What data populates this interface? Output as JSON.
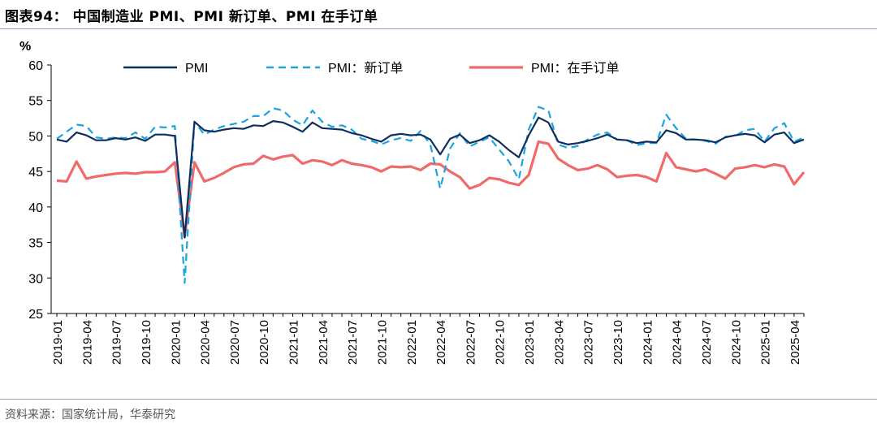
{
  "header": {
    "title": "图表94：  中国制造业 PMI、PMI 新订单、PMI 在手订单"
  },
  "footer": {
    "source": "资料来源：国家统计局，华泰研究"
  },
  "chart_data": {
    "type": "line",
    "ylabel": "%",
    "ylim": [
      25,
      60
    ],
    "yticks": [
      25,
      30,
      35,
      40,
      45,
      50,
      55,
      60
    ],
    "grid": false,
    "legend_position": "top",
    "xtick_labels": [
      "2019-01",
      "2019-04",
      "2019-07",
      "2019-10",
      "2020-01",
      "2020-04",
      "2020-07",
      "2020-10",
      "2021-01",
      "2021-04",
      "2021-07",
      "2021-10",
      "2022-01",
      "2022-04",
      "2022-07",
      "2022-10",
      "2023-01",
      "2023-04",
      "2023-07",
      "2023-10",
      "2024-01",
      "2024-04",
      "2024-07",
      "2024-10",
      "2025-01",
      "2025-04"
    ],
    "x": [
      "2019-01",
      "2019-02",
      "2019-03",
      "2019-04",
      "2019-05",
      "2019-06",
      "2019-07",
      "2019-08",
      "2019-09",
      "2019-10",
      "2019-11",
      "2019-12",
      "2020-01",
      "2020-02",
      "2020-03",
      "2020-04",
      "2020-05",
      "2020-06",
      "2020-07",
      "2020-08",
      "2020-09",
      "2020-10",
      "2020-11",
      "2020-12",
      "2021-01",
      "2021-02",
      "2021-03",
      "2021-04",
      "2021-05",
      "2021-06",
      "2021-07",
      "2021-08",
      "2021-09",
      "2021-10",
      "2021-11",
      "2021-12",
      "2022-01",
      "2022-02",
      "2022-03",
      "2022-04",
      "2022-05",
      "2022-06",
      "2022-07",
      "2022-08",
      "2022-09",
      "2022-10",
      "2022-11",
      "2022-12",
      "2023-01",
      "2023-02",
      "2023-03",
      "2023-04",
      "2023-05",
      "2023-06",
      "2023-07",
      "2023-08",
      "2023-09",
      "2023-10",
      "2023-11",
      "2023-12",
      "2024-01",
      "2024-02",
      "2024-03",
      "2024-04",
      "2024-05",
      "2024-06",
      "2024-07",
      "2024-08",
      "2024-09",
      "2024-10",
      "2024-11",
      "2024-12",
      "2025-01",
      "2025-02",
      "2025-03",
      "2025-04",
      "2025-05"
    ],
    "series": [
      {
        "name": "PMI",
        "color": "#0d2f5e",
        "style": "solid",
        "values": [
          49.5,
          49.2,
          50.5,
          50.1,
          49.4,
          49.4,
          49.7,
          49.5,
          49.8,
          49.3,
          50.2,
          50.2,
          50.0,
          35.7,
          52.0,
          50.8,
          50.6,
          50.9,
          51.1,
          51.0,
          51.5,
          51.4,
          52.1,
          51.9,
          51.3,
          50.6,
          51.9,
          51.1,
          51.0,
          50.9,
          50.4,
          50.1,
          49.6,
          49.2,
          50.1,
          50.3,
          50.1,
          50.2,
          49.5,
          47.4,
          49.6,
          50.2,
          49.0,
          49.4,
          50.1,
          49.2,
          48.0,
          47.0,
          50.1,
          52.6,
          51.9,
          49.2,
          48.8,
          49.0,
          49.3,
          49.7,
          50.2,
          49.5,
          49.4,
          49.0,
          49.2,
          49.1,
          50.8,
          50.4,
          49.5,
          49.5,
          49.4,
          49.1,
          49.8,
          50.1,
          50.3,
          50.1,
          49.1,
          50.2,
          50.5,
          49.0,
          49.5
        ]
      },
      {
        "name": "PMI：新订单",
        "color": "#1aa3e0",
        "style": "dashed",
        "values": [
          49.6,
          50.6,
          51.6,
          51.4,
          49.8,
          49.6,
          49.8,
          49.7,
          50.5,
          49.6,
          51.3,
          51.2,
          51.4,
          29.3,
          52.0,
          50.2,
          50.9,
          51.4,
          51.7,
          52.0,
          52.8,
          52.8,
          53.9,
          53.6,
          52.3,
          51.5,
          53.6,
          52.0,
          51.3,
          51.5,
          50.9,
          49.6,
          49.3,
          48.8,
          49.4,
          49.7,
          49.3,
          50.7,
          48.8,
          42.6,
          48.2,
          50.4,
          48.5,
          49.2,
          49.8,
          48.1,
          46.4,
          43.9,
          50.9,
          54.1,
          53.6,
          48.8,
          48.3,
          48.6,
          49.5,
          50.2,
          50.5,
          49.5,
          49.4,
          48.7,
          49.0,
          49.0,
          53.0,
          51.1,
          49.6,
          49.5,
          49.3,
          48.9,
          49.9,
          50.0,
          50.8,
          51.0,
          49.2,
          51.1,
          51.8,
          49.2,
          49.8
        ]
      },
      {
        "name": "PMI：在手订单",
        "color": "#f06a6a",
        "style": "solid",
        "values": [
          43.7,
          43.6,
          46.4,
          44.0,
          44.3,
          44.5,
          44.7,
          44.8,
          44.7,
          44.9,
          44.9,
          45.0,
          46.3,
          35.8,
          46.3,
          43.6,
          44.1,
          44.8,
          45.6,
          46.0,
          46.1,
          47.2,
          46.7,
          47.1,
          47.3,
          46.1,
          46.6,
          46.4,
          45.9,
          46.6,
          46.1,
          45.9,
          45.6,
          45.0,
          45.7,
          45.6,
          45.7,
          45.2,
          46.1,
          46.0,
          45.0,
          44.2,
          42.6,
          43.1,
          44.1,
          43.9,
          43.4,
          43.1,
          44.5,
          49.2,
          48.9,
          46.8,
          45.9,
          45.2,
          45.4,
          45.9,
          45.3,
          44.2,
          44.4,
          44.5,
          44.2,
          43.6,
          47.6,
          45.6,
          45.3,
          45.0,
          45.3,
          44.7,
          44.0,
          45.4,
          45.6,
          45.9,
          45.6,
          46.0,
          45.7,
          43.2,
          44.9
        ]
      }
    ]
  }
}
